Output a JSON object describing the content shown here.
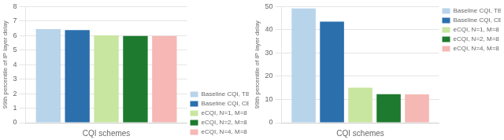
{
  "chart_data": [
    {
      "type": "bar",
      "categories": [
        null
      ],
      "series": [
        {
          "name": "Baseline CQI, TB-based Tx",
          "color": "#b8d4ea",
          "values": [
            6.45
          ]
        },
        {
          "name": "Baseline CQI, CBG-based Tx",
          "color": "#2b6fad",
          "values": [
            6.38
          ]
        },
        {
          "name": "eCQI, N=1, M=8",
          "color": "#c8e6a0",
          "values": [
            6.02
          ]
        },
        {
          "name": "eCQI, N=2, M=8",
          "color": "#1e7a2e",
          "values": [
            5.97
          ]
        },
        {
          "name": "eCQI, N=4, M=8",
          "color": "#f5b8b5",
          "values": [
            5.98
          ]
        }
      ],
      "xlabel": "CQI schemes",
      "ylabel": "99th percentile of IP layer delay",
      "ylim": [
        0,
        8
      ],
      "yticks": [
        0,
        1,
        2,
        3,
        4,
        5,
        6,
        7,
        8
      ],
      "grid": true,
      "legend": "lower right",
      "tick_labels": "y"
    },
    {
      "type": "bar",
      "categories": [
        null
      ],
      "series": [
        {
          "name": "Baseline CQI, TB-based Tx",
          "color": "#b8d4ea",
          "values": [
            49.2
          ]
        },
        {
          "name": "Baseline CQI, CBG-based Tx",
          "color": "#2b6fad",
          "values": [
            43.5
          ]
        },
        {
          "name": "eCQI, N=1, M=8",
          "color": "#c8e6a0",
          "values": [
            15.1
          ]
        },
        {
          "name": "eCQI, N=2, M=8",
          "color": "#1e7a2e",
          "values": [
            12.3
          ]
        },
        {
          "name": "eCQI, N=4, M=8",
          "color": "#f5b8b5",
          "values": [
            12.2
          ]
        }
      ],
      "xlabel": "CQI schemes",
      "ylabel": "99th percentile of IP layer delay",
      "ylim": [
        0,
        50
      ],
      "yticks": [
        0,
        10,
        20,
        30,
        40,
        50
      ],
      "grid": true,
      "legend": "upper right",
      "tick_labels": "y"
    }
  ]
}
